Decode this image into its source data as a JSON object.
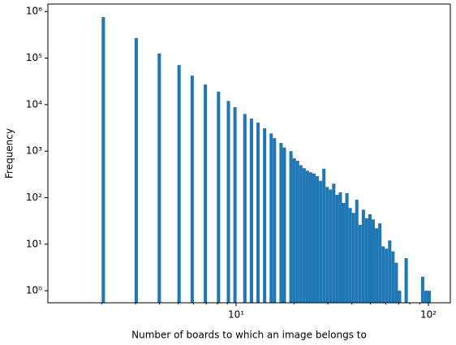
{
  "chart_data": {
    "type": "histogram",
    "xlabel": "Number of boards to which an image belongs to",
    "ylabel": "Frequency",
    "color": "#1f77b4",
    "log_x": true,
    "log_y": true,
    "xlim": [
      1.05,
      130
    ],
    "ylim": [
      0.55,
      1450000
    ],
    "xticks": [
      {
        "value": 10,
        "label": "10¹"
      },
      {
        "value": 100,
        "label": "10²"
      }
    ],
    "xminorticks": [
      2,
      3,
      4,
      5,
      6,
      7,
      8,
      9,
      20,
      30,
      40,
      50,
      60,
      70,
      80,
      90
    ],
    "yticks": [
      {
        "value": 1,
        "label": "10⁰"
      },
      {
        "value": 10,
        "label": "10¹"
      },
      {
        "value": 100,
        "label": "10²"
      },
      {
        "value": 1000,
        "label": "10³"
      },
      {
        "value": 10000,
        "label": "10⁴"
      },
      {
        "value": 100000,
        "label": "10⁵"
      },
      {
        "value": 1000000,
        "label": "10⁶"
      }
    ],
    "bins": [
      2,
      2.08,
      2.164,
      2.251,
      2.341,
      2.436,
      2.533,
      2.635,
      2.741,
      2.851,
      2.966,
      3.085,
      3.209,
      3.338,
      3.472,
      3.612,
      3.757,
      3.908,
      4.065,
      4.229,
      4.399,
      4.575,
      4.759,
      4.951,
      5.15,
      5.357,
      5.572,
      5.796,
      6.029,
      6.271,
      6.523,
      6.786,
      7.058,
      7.342,
      7.637,
      7.944,
      8.264,
      8.596,
      8.942,
      9.301,
      9.675,
      10.06,
      10.47,
      10.89,
      11.33,
      11.78,
      12.26,
      12.75,
      13.26,
      13.8,
      14.35,
      14.93,
      15.53,
      16.15,
      16.8,
      17.48,
      18.18,
      18.91,
      19.67,
      20.46,
      21.29,
      22.14,
      23.03,
      23.96,
      24.92,
      25.92,
      26.97,
      28.05,
      29.18,
      30.35,
      31.57,
      32.84,
      34.16,
      35.53,
      36.96,
      38.45,
      39.99,
      41.6,
      43.27,
      45.01,
      46.82,
      48.7,
      50.66,
      52.69,
      54.81,
      57.02,
      59.31,
      61.69,
      64.17,
      66.75,
      69.44,
      72.23,
      75.13,
      78.15,
      81.29,
      84.56,
      87.96,
      91.5,
      95.17,
      99.0,
      103.0
    ],
    "values": [
      760000,
      0,
      0,
      0,
      0,
      0,
      0,
      0,
      0,
      0,
      270000,
      0,
      0,
      0,
      0,
      0,
      0,
      125000,
      0,
      0,
      0,
      0,
      0,
      71000,
      0,
      0,
      0,
      42000,
      0,
      0,
      0,
      27000,
      0,
      0,
      0,
      19000,
      0,
      0,
      12000,
      0,
      8800,
      0,
      0,
      6300,
      0,
      5000,
      0,
      4100,
      0,
      3100,
      0,
      2400,
      1900,
      0,
      1500,
      1200,
      0,
      1000,
      700,
      620,
      500,
      430,
      380,
      350,
      330,
      290,
      230,
      420,
      170,
      150,
      200,
      115,
      130,
      77,
      125,
      60,
      47,
      90,
      26,
      55,
      36,
      44,
      34,
      22,
      28,
      9,
      8,
      12,
      7,
      4,
      1,
      0,
      5,
      0,
      0,
      0,
      0,
      2,
      1,
      1
    ]
  }
}
